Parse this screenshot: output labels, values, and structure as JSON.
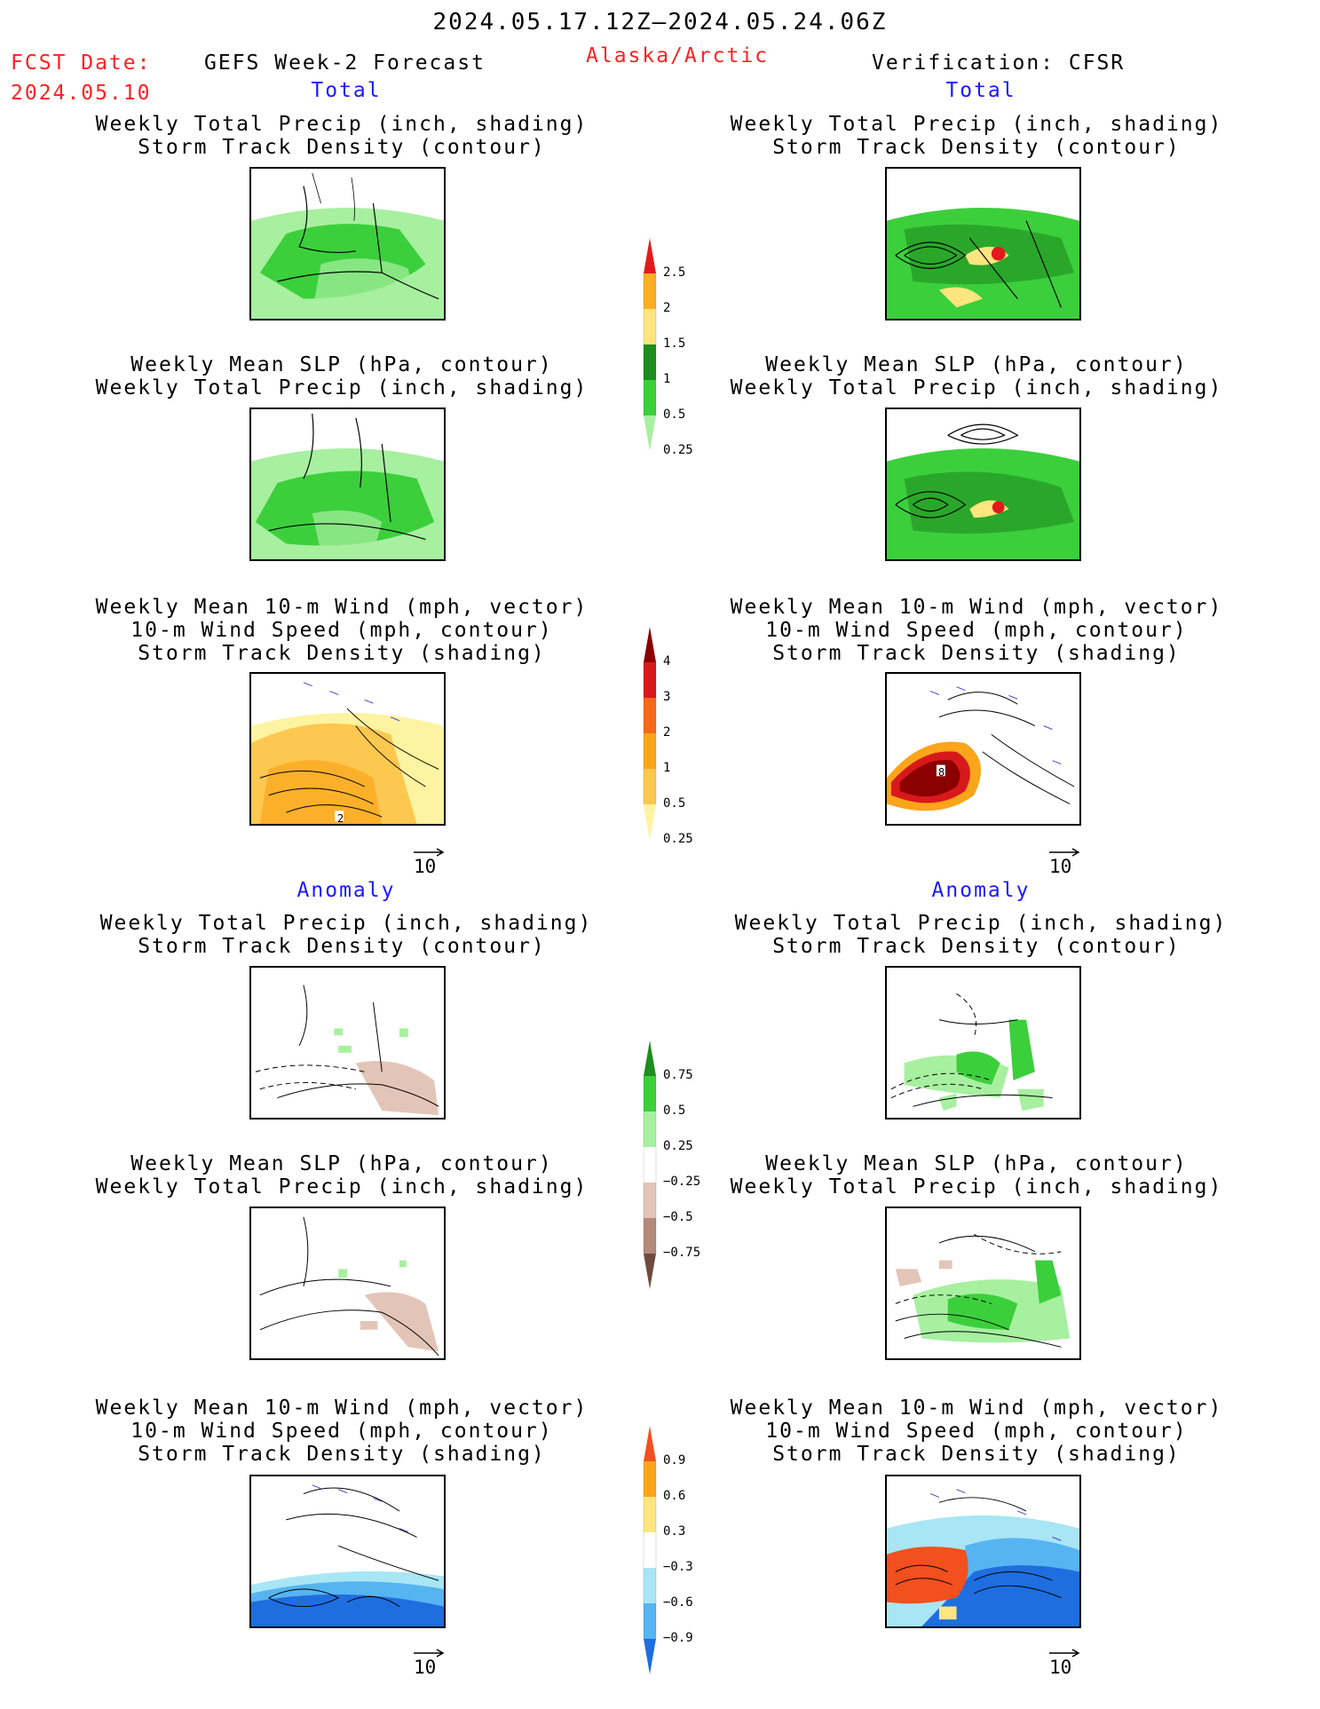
{
  "header": {
    "period": "2024.05.17.12Z–2024.05.24.06Z",
    "fcst_label": "FCST Date:",
    "fcst_date": "2024.05.10",
    "model": "GEFS Week-2 Forecast",
    "region": "Alaska/Arctic",
    "verification": "Verification: CFSR"
  },
  "sections": {
    "total": "Total",
    "anomaly": "Anomaly"
  },
  "titles": {
    "precip_track": [
      "Weekly Total Precip (inch, shading)",
      "Storm Track Density (contour)"
    ],
    "slp_precip": [
      "Weekly Mean SLP (hPa, contour)",
      "Weekly Total Precip (inch, shading)"
    ],
    "wind_track": [
      "Weekly Mean 10-m Wind (mph, vector)",
      "10-m Wind Speed (mph, contour)",
      "Storm Track Density (shading)"
    ]
  },
  "vector_ref": "10",
  "panel_labels": {
    "wind_total_left": "2",
    "wind_total_right": "8"
  },
  "colorbars": [
    {
      "id": "precip_total",
      "ticks": [
        "2.5",
        "2",
        "1.5",
        "1",
        "0.5",
        "0.25"
      ],
      "colors": [
        "#e31a1c",
        "#fdae23",
        "#fee57f",
        "#1e8c1e",
        "#3ccf3c",
        "#a7f0a0"
      ]
    },
    {
      "id": "track_total",
      "ticks": [
        "4",
        "3",
        "2",
        "1",
        "0.5",
        "0.25"
      ],
      "colors": [
        "#8b0000",
        "#d7191c",
        "#f46a1a",
        "#fba51a",
        "#fdc850",
        "#fef3a0"
      ]
    },
    {
      "id": "precip_anom",
      "ticks": [
        "0.75",
        "0.5",
        "0.25",
        "−0.25",
        "−0.5",
        "−0.75"
      ],
      "colors": [
        "#1e8c1e",
        "#3ccf3c",
        "#a7f0a0",
        "#ffffff",
        "#e3c5b8",
        "#b38a7a",
        "#6e4a3e"
      ]
    },
    {
      "id": "track_anom",
      "ticks": [
        "0.9",
        "0.6",
        "0.3",
        "−0.3",
        "−0.6",
        "−0.9"
      ],
      "colors": [
        "#f2501e",
        "#fba51a",
        "#fee57f",
        "#ffffff",
        "#a8e6f5",
        "#56b4f0",
        "#1e6ee0"
      ]
    }
  ],
  "colors": {
    "forecast_red": "#ff2020",
    "section_blue": "#1a1aff"
  }
}
